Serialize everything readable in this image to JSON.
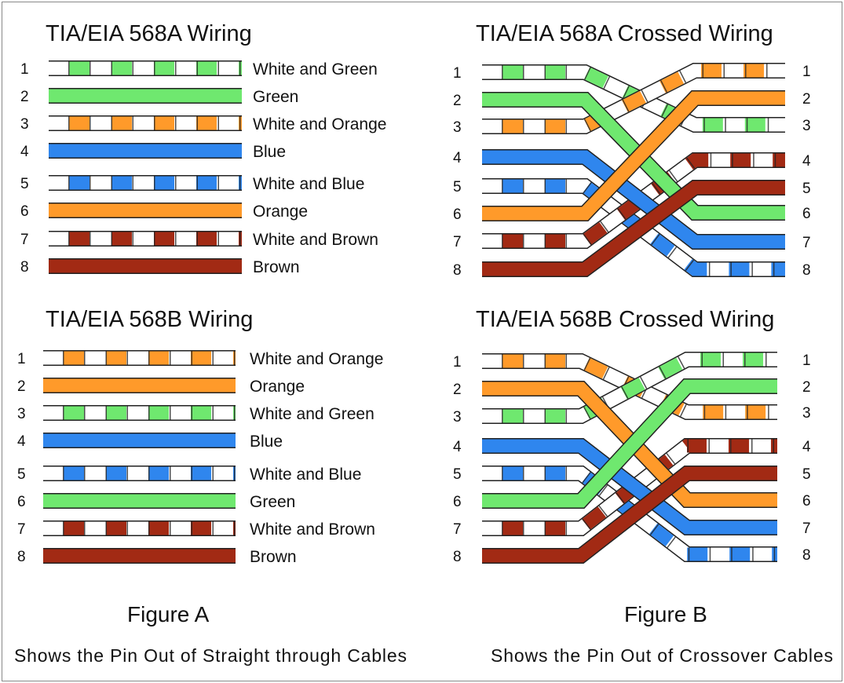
{
  "colors": {
    "green": "#6fe86f",
    "orange": "#ff9a2a",
    "blue": "#2f86ee",
    "brown": "#a22a14",
    "white": "#ffffff",
    "outline": "#222222"
  },
  "color_names": {
    "W-G": "White and Green",
    "G": "Green",
    "W-O": "White and Orange",
    "O": "Orange",
    "W-B": "White and Blue",
    "B": "Blue",
    "W-Br": "White and Brown",
    "Br": "Brown"
  },
  "straight": [
    {
      "title": "TIA/EIA 568A Wiring",
      "pins": [
        "1",
        "2",
        "3",
        "4",
        "5",
        "6",
        "7",
        "8"
      ],
      "wires": [
        "W-G",
        "G",
        "W-O",
        "B",
        "W-B",
        "O",
        "W-Br",
        "Br"
      ],
      "labels": [
        "White and Green",
        "Green",
        "White and Orange",
        "Blue",
        "White and Blue",
        "Orange",
        "White and Brown",
        "Brown"
      ]
    },
    {
      "title": "TIA/EIA 568B Wiring",
      "pins": [
        "1",
        "2",
        "3",
        "4",
        "5",
        "6",
        "7",
        "8"
      ],
      "wires": [
        "W-O",
        "O",
        "W-G",
        "B",
        "W-B",
        "G",
        "W-Br",
        "Br"
      ],
      "labels": [
        "White and Orange",
        "Orange",
        "White and Green",
        "Blue",
        "White and Blue",
        "Green",
        "White and Brown",
        "Brown"
      ]
    }
  ],
  "crossed": [
    {
      "title": "TIA/EIA 568A Crossed Wiring",
      "pins": [
        "1",
        "2",
        "3",
        "4",
        "5",
        "6",
        "7",
        "8"
      ],
      "left": [
        "W-G",
        "G",
        "W-O",
        "B",
        "W-B",
        "O",
        "W-Br",
        "Br"
      ],
      "right": [
        "W-O",
        "O",
        "W-G",
        "W-Br",
        "Br",
        "G",
        "B",
        "W-B"
      ]
    },
    {
      "title": "TIA/EIA 568B Crossed Wiring",
      "pins": [
        "1",
        "2",
        "3",
        "4",
        "5",
        "6",
        "7",
        "8"
      ],
      "left": [
        "W-O",
        "O",
        "W-G",
        "B",
        "W-B",
        "G",
        "W-Br",
        "Br"
      ],
      "right": [
        "W-G",
        "G",
        "W-O",
        "W-Br",
        "Br",
        "O",
        "B",
        "W-B"
      ]
    }
  ],
  "figure_a": {
    "label": "Figure A",
    "caption": "Shows the Pin Out of Straight through Cables"
  },
  "figure_b": {
    "label": "Figure B",
    "caption": "Shows the Pin Out of Crossover Cables"
  }
}
